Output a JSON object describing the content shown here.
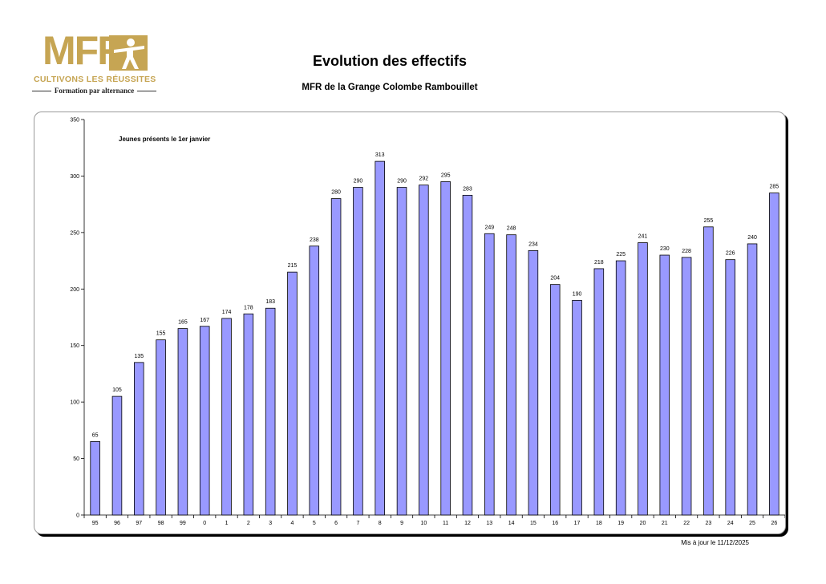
{
  "logo": {
    "brand": "MFR",
    "tagline": "CULTIVONS LES RÉUSSITES",
    "subtitle": "Formation par alternance"
  },
  "header": {
    "title": "Evolution des effectifs",
    "subtitle": "MFR de la Grange Colombe Rambouillet"
  },
  "footer": {
    "updated": "Mis à jour le 11/12/2025"
  },
  "colors": {
    "bar_fill": "#9999ff",
    "bar_stroke": "#000000",
    "logo_gold": "#c6a553"
  },
  "chart_data": {
    "type": "bar",
    "annotation": "Jeunes présents le 1er janvier",
    "categories": [
      "95",
      "96",
      "97",
      "98",
      "99",
      "0",
      "1",
      "2",
      "3",
      "4",
      "5",
      "6",
      "7",
      "8",
      "9",
      "10",
      "11",
      "12",
      "13",
      "14",
      "15",
      "16",
      "17",
      "18",
      "19",
      "20",
      "21",
      "22",
      "23",
      "24",
      "25",
      "26"
    ],
    "values": [
      65,
      105,
      135,
      155,
      165,
      167,
      174,
      178,
      183,
      215,
      238,
      280,
      290,
      313,
      290,
      292,
      295,
      283,
      249,
      248,
      234,
      204,
      190,
      218,
      225,
      241,
      230,
      228,
      255,
      226,
      240,
      285
    ],
    "yticks": [
      0,
      50,
      100,
      150,
      200,
      250,
      300,
      350
    ],
    "ylim": [
      0,
      350
    ],
    "xlabel": "",
    "ylabel": "",
    "grid": false,
    "legend": "none",
    "data_labels": true
  }
}
